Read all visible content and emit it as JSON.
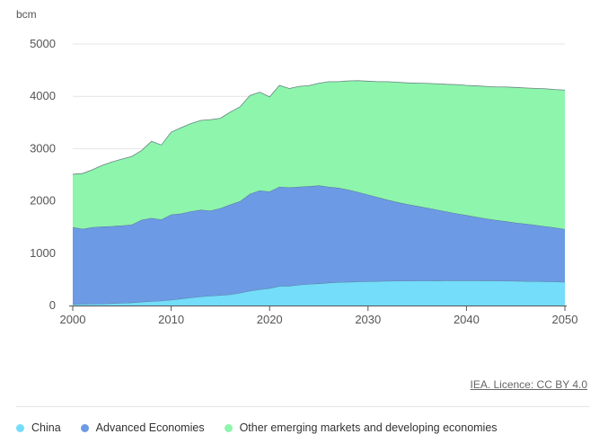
{
  "chart_data": {
    "type": "area",
    "stacked": true,
    "unit": "bcm",
    "ylim": [
      0,
      5000
    ],
    "yticks": [
      0,
      1000,
      2000,
      3000,
      4000,
      5000
    ],
    "xlim": [
      2000,
      2050
    ],
    "xticks": [
      2000,
      2010,
      2020,
      2030,
      2040,
      2050
    ],
    "grid": true,
    "legend_position": "bottom",
    "x": [
      2000,
      2001,
      2002,
      2003,
      2004,
      2005,
      2006,
      2007,
      2008,
      2009,
      2010,
      2011,
      2012,
      2013,
      2014,
      2015,
      2016,
      2017,
      2018,
      2019,
      2020,
      2021,
      2022,
      2023,
      2024,
      2025,
      2026,
      2027,
      2028,
      2029,
      2030,
      2031,
      2032,
      2033,
      2034,
      2035,
      2036,
      2037,
      2038,
      2039,
      2040,
      2041,
      2042,
      2043,
      2044,
      2045,
      2046,
      2047,
      2048,
      2049,
      2050
    ],
    "series": [
      {
        "name": "China",
        "color": "#73ddfa",
        "values": [
          25,
          28,
          30,
          35,
          40,
          47,
          55,
          70,
          80,
          90,
          107,
          130,
          150,
          170,
          185,
          195,
          210,
          240,
          280,
          307,
          330,
          370,
          375,
          395,
          410,
          420,
          435,
          445,
          450,
          455,
          460,
          465,
          468,
          470,
          470,
          472,
          473,
          474,
          475,
          475,
          475,
          475,
          474,
          472,
          470,
          468,
          465,
          462,
          458,
          455,
          450
        ]
      },
      {
        "name": "Advanced Economies",
        "color": "#6c9ae4",
        "values": [
          1475,
          1437,
          1467,
          1475,
          1477,
          1483,
          1492,
          1568,
          1593,
          1555,
          1633,
          1630,
          1650,
          1660,
          1630,
          1665,
          1720,
          1755,
          1855,
          1893,
          1850,
          1900,
          1885,
          1875,
          1870,
          1875,
          1835,
          1805,
          1765,
          1715,
          1660,
          1605,
          1552,
          1505,
          1468,
          1430,
          1395,
          1358,
          1320,
          1285,
          1255,
          1220,
          1188,
          1162,
          1140,
          1115,
          1098,
          1078,
          1057,
          1035,
          1010
        ]
      },
      {
        "name": "Other emerging markets and developing economies",
        "color": "#8ef5ac",
        "values": [
          1010,
          1060,
          1100,
          1170,
          1230,
          1270,
          1303,
          1327,
          1467,
          1425,
          1575,
          1640,
          1680,
          1710,
          1740,
          1720,
          1770,
          1805,
          1880,
          1880,
          1810,
          1940,
          1890,
          1920,
          1925,
          1955,
          2010,
          2030,
          2080,
          2130,
          2170,
          2210,
          2260,
          2295,
          2320,
          2350,
          2380,
          2408,
          2435,
          2465,
          2480,
          2505,
          2528,
          2546,
          2570,
          2587,
          2597,
          2612,
          2630,
          2640,
          2660
        ]
      }
    ]
  },
  "source_text": "IEA. Licence: CC BY 4.0"
}
